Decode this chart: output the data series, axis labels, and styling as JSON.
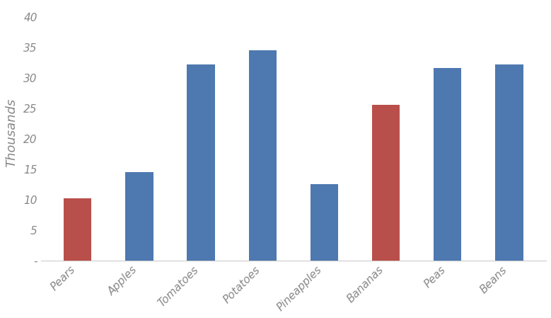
{
  "categories": [
    "Pears",
    "Apples",
    "Tomatoes",
    "Potatoes",
    "Pineapples",
    "Bananas",
    "Peas",
    "Beans"
  ],
  "values": [
    10.3,
    14.6,
    32.2,
    34.6,
    12.6,
    25.6,
    31.6,
    32.2
  ],
  "bar_colors": [
    "#b94f4a",
    "#4e78b0",
    "#4e78b0",
    "#4e78b0",
    "#4e78b0",
    "#b94f4a",
    "#4e78b0",
    "#4e78b0"
  ],
  "ylabel": "Thousands",
  "ylim": [
    0,
    42
  ],
  "yticks": [
    0,
    5,
    10,
    15,
    20,
    25,
    30,
    35,
    40
  ],
  "ytick_labels": [
    "-",
    "5",
    "10",
    "15",
    "20",
    "25",
    "30",
    "35",
    "40"
  ],
  "background_color": "#ffffff",
  "plot_bg_color": "#ffffff",
  "bar_width": 0.45,
  "ylabel_fontsize": 13,
  "tick_color": "#888888",
  "tick_fontsize": 11
}
